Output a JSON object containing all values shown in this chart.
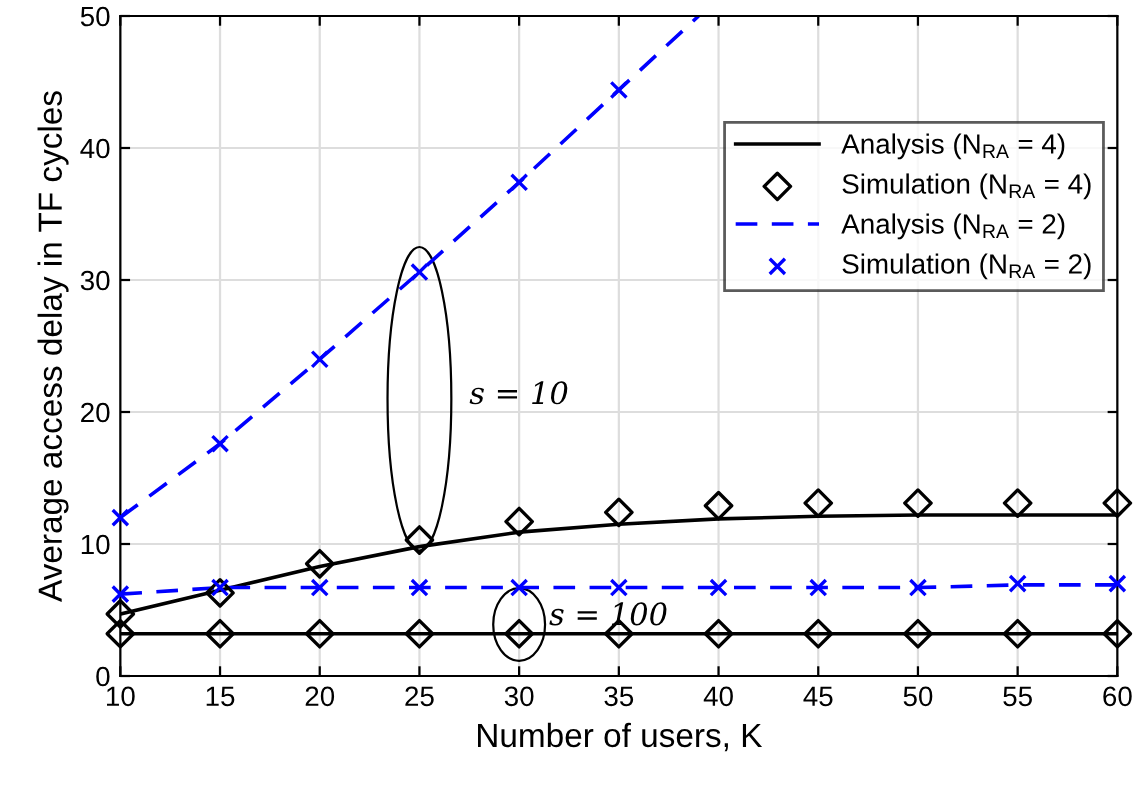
{
  "chart_data": {
    "type": "line",
    "xlabel": "Number of users, K",
    "ylabel": "Average access delay in TF cycles",
    "xlim": [
      10,
      60
    ],
    "ylim": [
      0,
      50
    ],
    "xticks": [
      10,
      15,
      20,
      25,
      30,
      35,
      40,
      45,
      50,
      55,
      60
    ],
    "yticks": [
      0,
      10,
      20,
      30,
      40,
      50
    ],
    "grid": true,
    "legend": "top right",
    "series": [
      {
        "name": "Analysis (N$_{RA}$ = 4)",
        "color": "#000000",
        "line_style": "solid",
        "marker": "none",
        "x": [
          10,
          15,
          20,
          25,
          30,
          35,
          40,
          45,
          50,
          55,
          60
        ],
        "values": [
          4.7,
          6.5,
          8.3,
          9.8,
          10.9,
          11.5,
          11.9,
          12.1,
          12.2,
          12.2,
          12.2
        ]
      },
      {
        "name": "Simulation (N$_{RA}$ = 4)",
        "type": "scatter",
        "color": "#000000",
        "marker": "diamond",
        "x": [
          10,
          15,
          20,
          25,
          30,
          35,
          40,
          45,
          50,
          55,
          60
        ],
        "values": [
          4.7,
          6.3,
          8.5,
          10.3,
          11.7,
          12.4,
          12.9,
          13.1,
          13.1,
          13.1,
          13.1
        ]
      },
      {
        "name": "Analysis (N$_{RA}$ = 2)",
        "color": "#0000ff",
        "line_style": "dashed",
        "marker": "none",
        "x": [
          10,
          15,
          20,
          25,
          30,
          35,
          39
        ],
        "values": [
          12.0,
          17.6,
          24.0,
          30.6,
          37.4,
          44.4,
          50.0
        ]
      },
      {
        "name": "Simulation (N$_{RA}$ = 2)",
        "type": "scatter",
        "color": "#0000ff",
        "marker": "cross",
        "x": [
          10,
          15,
          20,
          25,
          30,
          35
        ],
        "values": [
          12.0,
          17.6,
          24.0,
          30.6,
          37.4,
          44.4
        ]
      },
      {
        "color": "#000000",
        "line_style": "solid",
        "marker": "none",
        "x": [
          10,
          15,
          20,
          25,
          30,
          35,
          40,
          45,
          50,
          55,
          60
        ],
        "values": [
          3.2,
          3.2,
          3.2,
          3.2,
          3.2,
          3.2,
          3.2,
          3.2,
          3.2,
          3.2,
          3.2
        ]
      },
      {
        "type": "scatter",
        "color": "#000000",
        "marker": "diamond",
        "x": [
          10,
          15,
          20,
          25,
          30,
          35,
          40,
          45,
          50,
          55,
          60
        ],
        "values": [
          3.2,
          3.2,
          3.2,
          3.2,
          3.2,
          3.2,
          3.2,
          3.2,
          3.2,
          3.2,
          3.2
        ]
      },
      {
        "color": "#0000ff",
        "line_style": "dashed",
        "marker": "none",
        "x": [
          10,
          15,
          20,
          25,
          30,
          35,
          40,
          45,
          50,
          55,
          60
        ],
        "values": [
          6.2,
          6.7,
          6.7,
          6.7,
          6.7,
          6.7,
          6.7,
          6.7,
          6.7,
          6.9,
          6.9
        ]
      },
      {
        "type": "scatter",
        "color": "#0000ff",
        "marker": "cross",
        "x": [
          10,
          15,
          20,
          25,
          30,
          35,
          40,
          45,
          50,
          55,
          60
        ],
        "values": [
          6.2,
          6.7,
          6.7,
          6.7,
          6.7,
          6.7,
          6.7,
          6.7,
          6.7,
          7.0,
          7.0
        ]
      }
    ],
    "annotations": [
      "s = 10",
      "s = 100"
    ]
  }
}
